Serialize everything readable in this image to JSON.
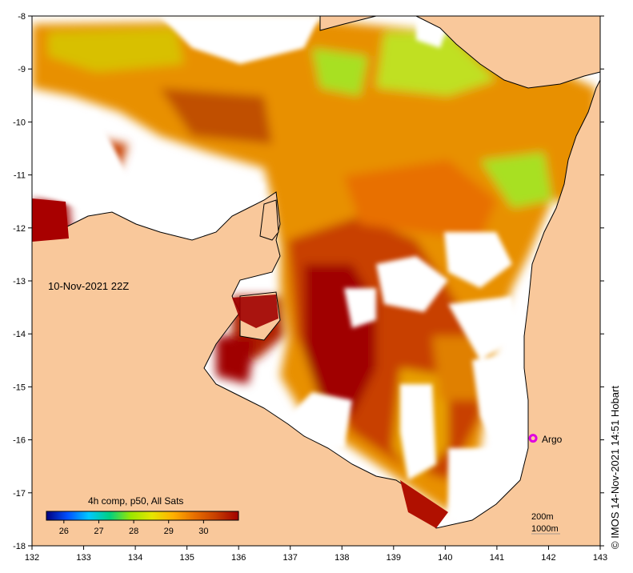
{
  "timestamp_label": "10-Nov-2021 22Z",
  "product_label": "4h comp, p50, All Sats",
  "credit": "© IMOS 14-Nov-2021 14:51 Hobart",
  "argo": {
    "label": "Argo",
    "lon": 141.7,
    "lat": -15.97,
    "color": "#e000e0"
  },
  "contours": {
    "line1": "200m",
    "line2": "1000m"
  },
  "axes": {
    "lon": {
      "min": 132,
      "max": 143,
      "ticks": [
        132,
        133,
        134,
        135,
        136,
        137,
        138,
        139,
        140,
        141,
        142,
        143
      ]
    },
    "lat": {
      "min": -18,
      "max": -8,
      "ticks": [
        -8,
        -9,
        -10,
        -11,
        -12,
        -13,
        -14,
        -15,
        -16,
        -17,
        -18
      ]
    }
  },
  "colorbar": {
    "min": 25.5,
    "max": 31.0,
    "ticks": [
      26,
      27,
      28,
      29,
      30
    ],
    "colors": [
      "#000080",
      "#0050ff",
      "#00c8ff",
      "#00d080",
      "#9be600",
      "#e6e600",
      "#ffb000",
      "#e87000",
      "#c84000",
      "#a00000"
    ]
  },
  "colors": {
    "land": "#f9c89b",
    "no_data": "#ffffff",
    "sst_warm": "#c04000",
    "sst_hot": "#a00000",
    "sst_mid": "#e89000",
    "sst_cool": "#a0e020"
  }
}
